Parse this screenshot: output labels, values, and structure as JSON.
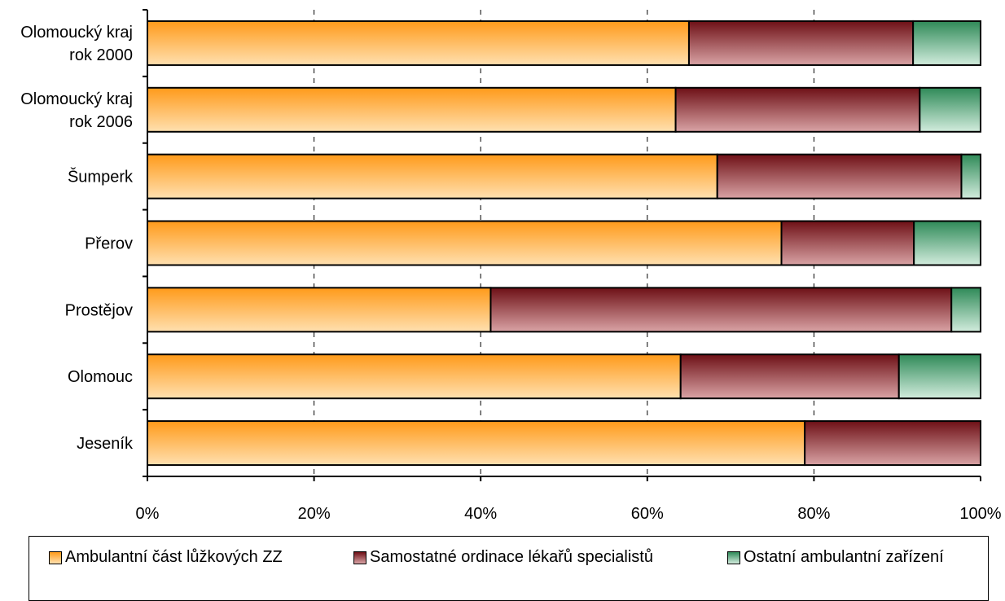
{
  "chart_data": {
    "type": "bar",
    "orientation": "horizontal",
    "stacked": "percent",
    "categories": [
      "Olomoucký kraj rok 2000",
      "Olomoucký kraj rok 2006",
      "Šumperk",
      "Přerov",
      "Prostějov",
      "Olomouc",
      "Jeseník"
    ],
    "category_lines": [
      [
        "Olomoucký kraj",
        "rok 2000"
      ],
      [
        "Olomoucký kraj",
        "rok 2006"
      ],
      [
        "Šumperk"
      ],
      [
        "Přerov"
      ],
      [
        "Prostějov"
      ],
      [
        "Olomouc"
      ],
      [
        "Jeseník"
      ]
    ],
    "series": [
      {
        "name": "Ambulantní část lůžkových ZZ",
        "values": [
          65.0,
          63.4,
          68.4,
          76.1,
          41.2,
          64.0,
          78.9
        ],
        "color_top": "#ff9a1a",
        "color_bottom": "#ffe0b0"
      },
      {
        "name": "Samostatné ordinace lékařů specialistů",
        "values": [
          26.9,
          29.3,
          29.3,
          15.9,
          55.3,
          26.2,
          21.1
        ],
        "color_top": "#6e1016",
        "color_bottom": "#d9a3a5"
      },
      {
        "name": "Ostatní ambulantní zařízení",
        "values": [
          8.1,
          7.3,
          2.3,
          8.0,
          3.5,
          9.8,
          0.0
        ],
        "color_top": "#2f8a58",
        "color_bottom": "#d2ecdd"
      }
    ],
    "x_ticks": [
      "0%",
      "20%",
      "40%",
      "60%",
      "80%",
      "100%"
    ],
    "xlim": [
      0,
      100
    ],
    "grid": "vertical dashed",
    "legend_position": "bottom"
  }
}
